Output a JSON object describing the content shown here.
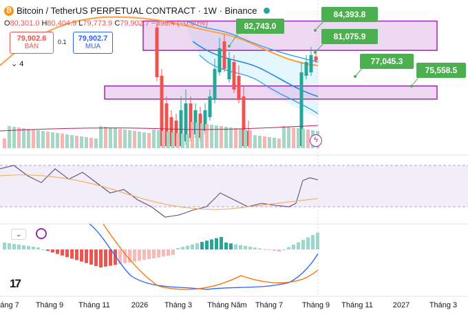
{
  "header": {
    "title": "Bitcoin / TetherUS PERPETUAL CONTRACT · 1W · Binance",
    "coin_icon": "bitcoin-icon",
    "ohlc": {
      "o_label": "O",
      "o": "80,301.0",
      "h_label": "H",
      "h": "80,404.9",
      "l_label": "L",
      "l": "79,773.9",
      "c_label": "C",
      "c": "79,902.7",
      "change": "−398.4 (−0.50%)"
    },
    "sell": {
      "price": "79,902.6",
      "label": "BÁN"
    },
    "buy": {
      "price": "79,902.7",
      "label": "MUA"
    },
    "spread": "0.1",
    "indicator_count": "4"
  },
  "colors": {
    "up": "#26a69a",
    "down": "#ef5350",
    "zone_fill": "#e1bee7",
    "zone_border": "#9c27b0",
    "callout": "#4caf50",
    "ema": "#f7a54a",
    "bb": "#2196f3"
  },
  "chart_data": {
    "type": "candlestick",
    "x_tick_labels": [
      "áng 7",
      "Tháng 9",
      "Tháng 11",
      "2026",
      "Tháng 3",
      "Tháng Năm",
      "Tháng 7",
      "Tháng 9",
      "Tháng 11",
      "2027",
      "Tháng 3"
    ],
    "price_callouts": [
      "84,393.8",
      "81,075.9",
      "82,743.0",
      "77,045.3",
      "75,558.5"
    ],
    "zones": [
      {
        "name": "upper-zone",
        "from": 81075.9,
        "to": 84393.8
      },
      {
        "name": "lower-zone",
        "from": 75558.5,
        "to": 77045.3
      }
    ],
    "indicators": [
      "Volume",
      "RSI",
      "MACD"
    ]
  },
  "xaxis": {
    "labels": [
      "áng 7",
      "Tháng 9",
      "Tháng 11",
      "2026",
      "Tháng 3",
      "Tháng Năm",
      "Tháng 7",
      "Tháng 9",
      "Tháng 11",
      "2027",
      "Tháng 3"
    ]
  }
}
